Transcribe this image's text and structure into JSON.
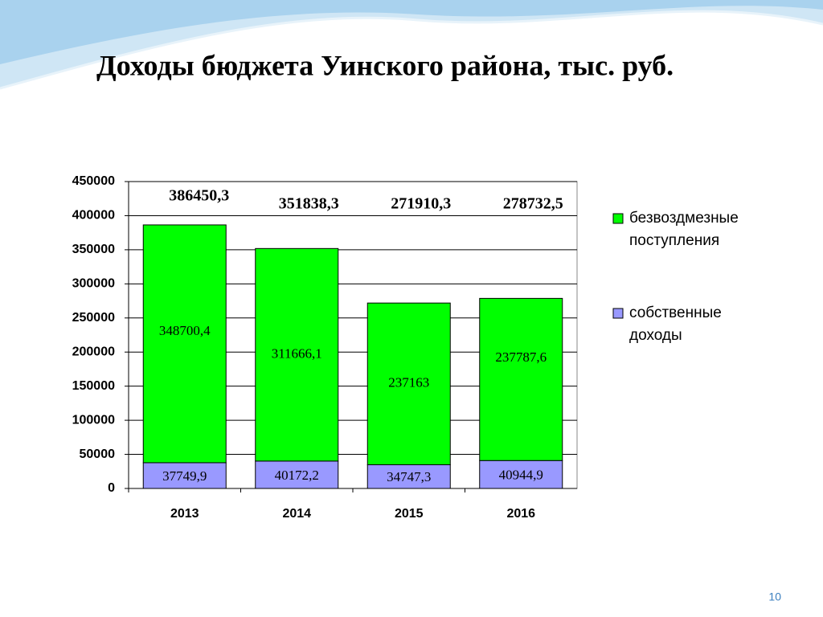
{
  "chart_data": {
    "type": "stacked_bar",
    "title": "Доходы бюджета Уинского района, тыс. руб.",
    "categories": [
      "2013",
      "2014",
      "2015",
      "2016"
    ],
    "series": [
      {
        "name": "собственные доходы",
        "color": "#9999ff",
        "values": [
          37749.9,
          40172.2,
          34747.3,
          40944.9
        ],
        "value_labels": [
          "37749,9",
          "40172,2",
          "34747,3",
          "40944,9"
        ]
      },
      {
        "name": "безвоздмезные поступления",
        "color": "#00ff00",
        "values": [
          348700.4,
          311666.1,
          237163,
          237787.6
        ],
        "value_labels": [
          "348700,4",
          "311666,1",
          "237163",
          "237787,6"
        ]
      }
    ],
    "total_labels": [
      "386450,3",
      "351838,3",
      "271910,3",
      "278732,5"
    ],
    "ylim": [
      0,
      450000
    ],
    "yticks": [
      0,
      50000,
      100000,
      150000,
      200000,
      250000,
      300000,
      350000,
      400000,
      450000
    ],
    "grid": true,
    "legend": "right"
  },
  "page_number": "10"
}
